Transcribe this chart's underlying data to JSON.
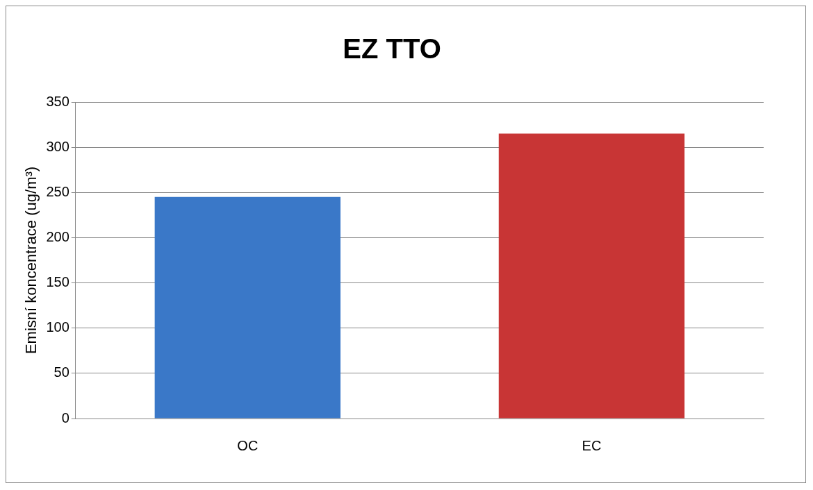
{
  "chart_data": {
    "type": "bar",
    "title": "EZ TTO",
    "ylabel": "Emisní koncentrace (ug/m³)",
    "categories": [
      "OC",
      "EC"
    ],
    "values": [
      245,
      315
    ],
    "colors": [
      "#3a78c8",
      "#c83535"
    ],
    "ylim": [
      0,
      350
    ],
    "yticks": [
      0,
      50,
      100,
      150,
      200,
      250,
      300,
      350
    ],
    "grid": "y"
  }
}
